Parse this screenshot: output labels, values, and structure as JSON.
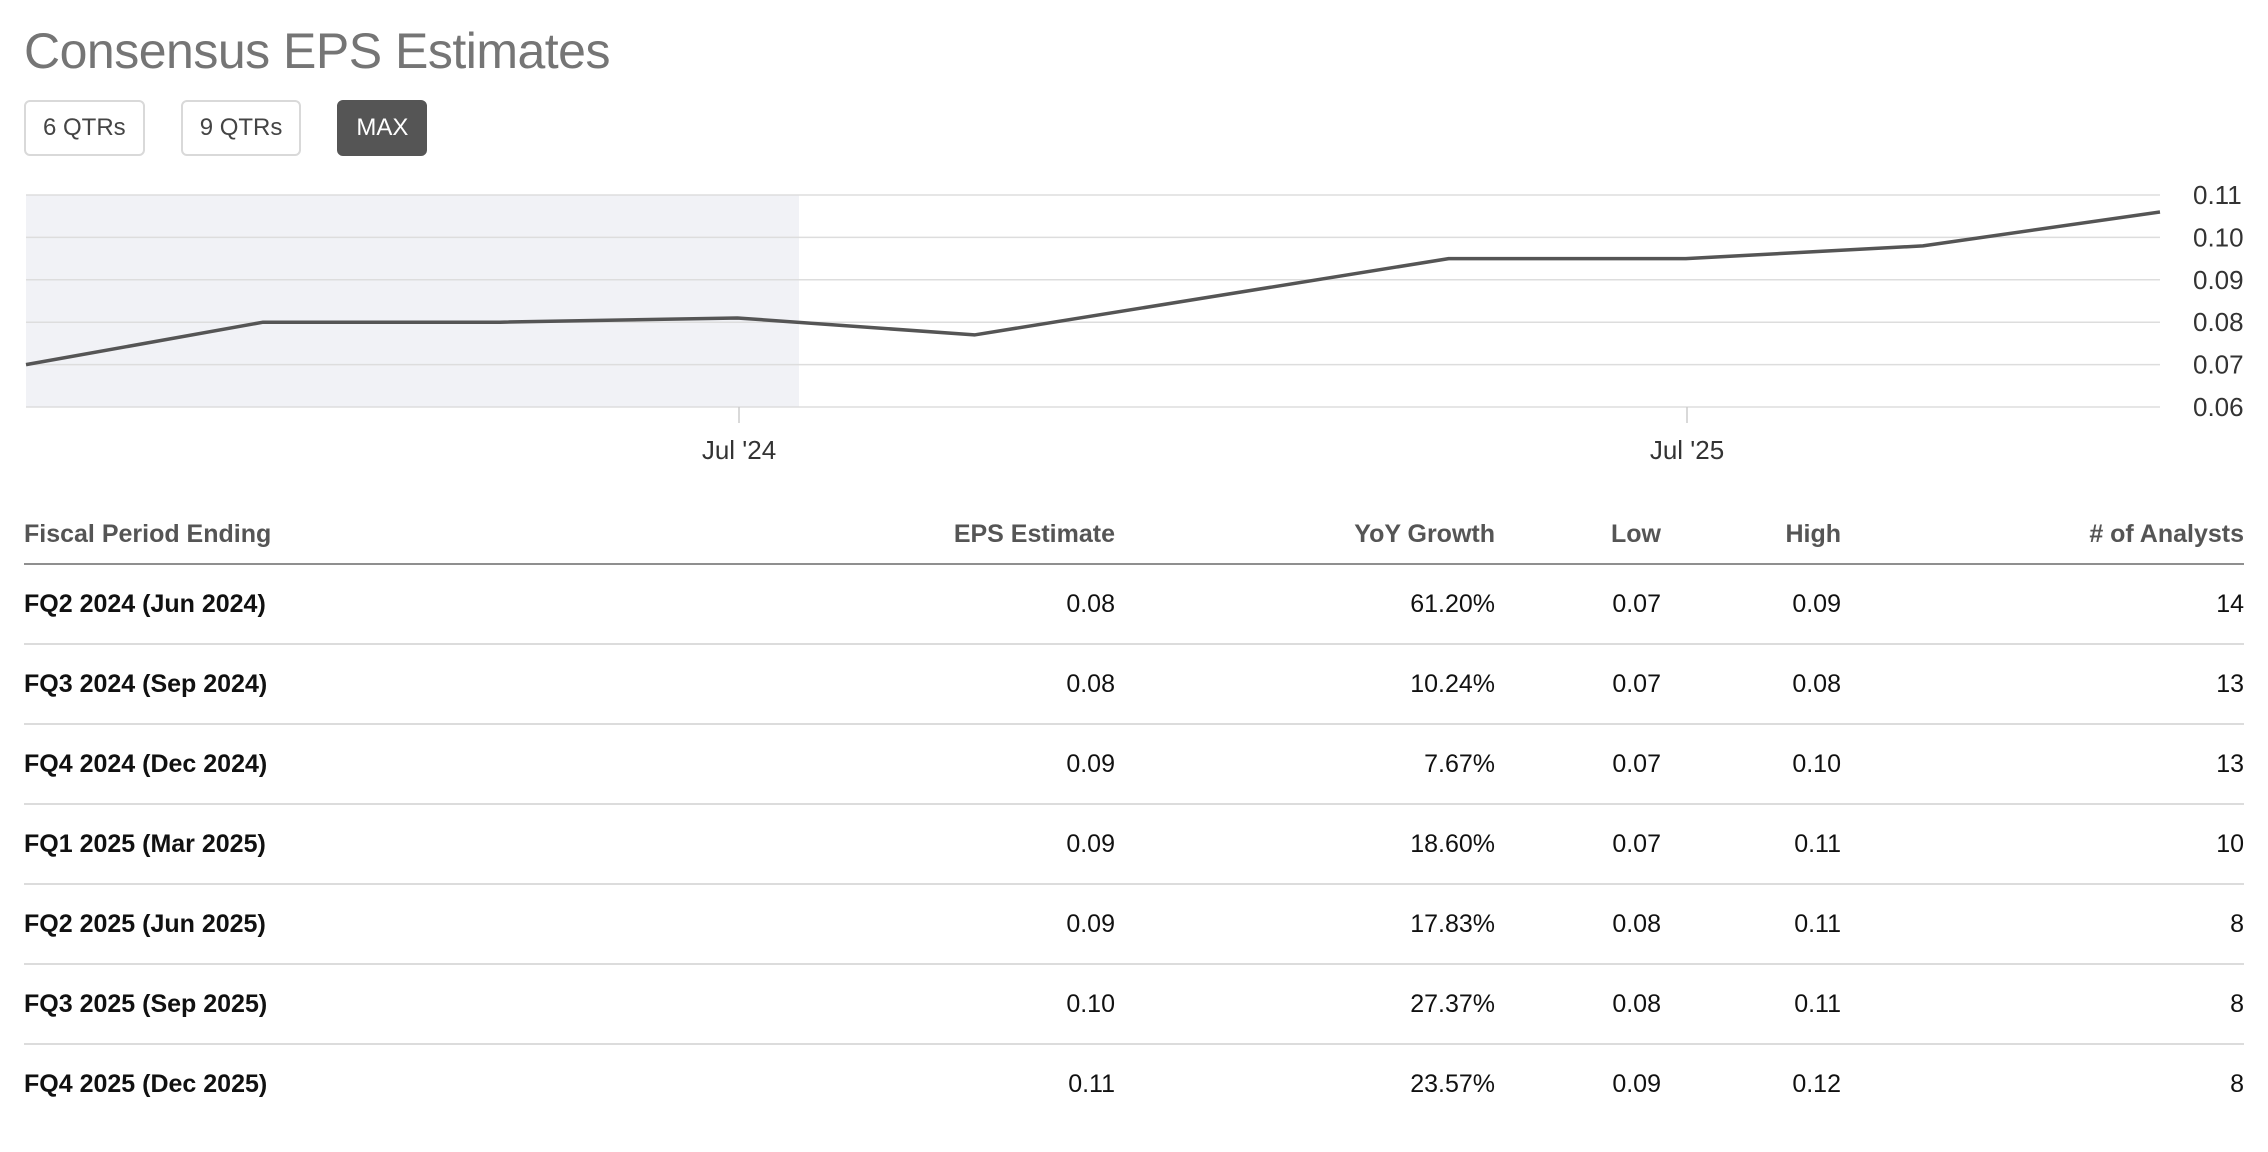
{
  "title": "Consensus EPS Estimates",
  "range_buttons": [
    {
      "label": "6 QTRs",
      "active": false
    },
    {
      "label": "9 QTRs",
      "active": false
    },
    {
      "label": "MAX",
      "active": true
    }
  ],
  "colors": {
    "line": "#555555",
    "shade": "#f1f2f6",
    "grid": "#dddddd",
    "active_button": "#555555"
  },
  "chart_data": {
    "type": "line",
    "series": [
      {
        "values": [
          0.07,
          0.08,
          0.08,
          0.081,
          0.077,
          0.086,
          0.095,
          0.095,
          0.098,
          0.106
        ]
      }
    ],
    "ylim": [
      0.06,
      0.11
    ],
    "y_ticks": [
      "0.11",
      "0.10",
      "0.09",
      "0.08",
      "0.07",
      "0.06"
    ],
    "x_ticks": [
      "Jul '24",
      "Jul '25"
    ],
    "shaded_region": "historical",
    "grid": true,
    "y_axis_position": "right"
  },
  "table": {
    "headers": [
      "Fiscal Period Ending",
      "EPS Estimate",
      "YoY Growth",
      "Low",
      "High",
      "# of Analysts"
    ],
    "rows": [
      [
        "FQ2 2024 (Jun 2024)",
        "0.08",
        "61.20%",
        "0.07",
        "0.09",
        "14"
      ],
      [
        "FQ3 2024 (Sep 2024)",
        "0.08",
        "10.24%",
        "0.07",
        "0.08",
        "13"
      ],
      [
        "FQ4 2024 (Dec 2024)",
        "0.09",
        "7.67%",
        "0.07",
        "0.10",
        "13"
      ],
      [
        "FQ1 2025 (Mar 2025)",
        "0.09",
        "18.60%",
        "0.07",
        "0.11",
        "10"
      ],
      [
        "FQ2 2025 (Jun 2025)",
        "0.09",
        "17.83%",
        "0.08",
        "0.11",
        "8"
      ],
      [
        "FQ3 2025 (Sep 2025)",
        "0.10",
        "27.37%",
        "0.08",
        "0.11",
        "8"
      ],
      [
        "FQ4 2025 (Dec 2025)",
        "0.11",
        "23.57%",
        "0.09",
        "0.12",
        "8"
      ]
    ]
  }
}
